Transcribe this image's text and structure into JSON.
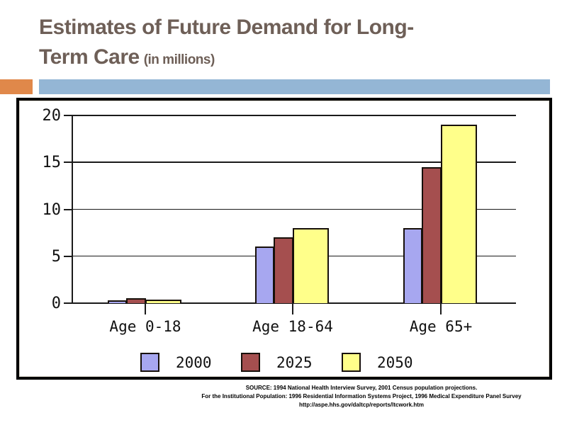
{
  "title": {
    "line1": "Estimates of Future Demand for Long-",
    "line2": "Term Care",
    "suffix": "(in millions)"
  },
  "colors": {
    "title_text": "#6e5f57",
    "accent_orange": "#e0884a",
    "accent_blue": "#94b6d5",
    "axis": "#1a1a1a",
    "bar_border": "#17100a",
    "series_2000": "#a7a7f0",
    "series_2025": "#a54f4f",
    "series_2050": "#ffff8a"
  },
  "chart_data": {
    "type": "bar",
    "title": "Estimates of Future Demand for Long-Term Care (in millions)",
    "categories": [
      "Age 0-18",
      "Age 18-64",
      "Age 65+"
    ],
    "series": [
      {
        "name": "2000",
        "color_key": "series_2000",
        "values": [
          0.3,
          6,
          8
        ]
      },
      {
        "name": "2025",
        "color_key": "series_2025",
        "values": [
          0.5,
          7,
          14.5
        ]
      },
      {
        "name": "2050",
        "color_key": "series_2050",
        "values": [
          0.4,
          8,
          19
        ]
      }
    ],
    "xlabel": "",
    "ylabel": "",
    "ylim": [
      0,
      20
    ],
    "yticks": [
      0,
      5,
      10,
      15,
      20
    ],
    "grid": true,
    "legend_position": "bottom"
  },
  "source": {
    "lines": [
      "SOURCE: 1994 National Health Interview Survey, 2001 Census population projections.",
      "For the Institutional Population: 1996 Residential Information Systems Project, 1996 Medical Expenditure Panel Survey",
      "http://aspe.hhs.gov/daltcp/reports/ltcwork.htm"
    ]
  }
}
